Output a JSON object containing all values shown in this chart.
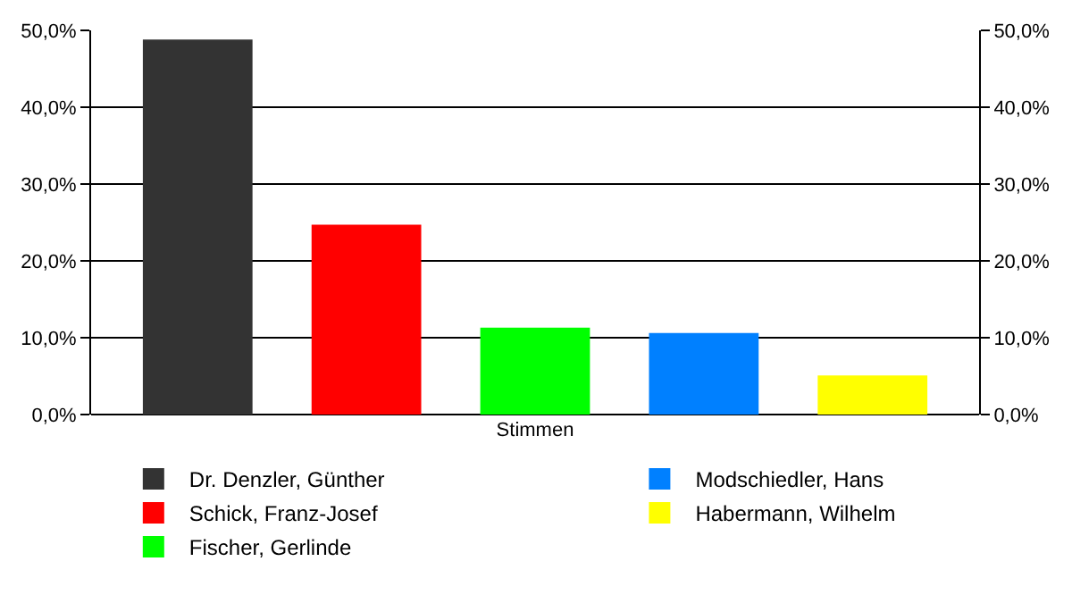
{
  "chart_data": {
    "type": "bar",
    "categories": [
      "Stimmen"
    ],
    "series": [
      {
        "name": "Dr. Denzler, Günther",
        "color": "#333333",
        "values": [
          48.8
        ]
      },
      {
        "name": "Schick, Franz-Josef",
        "color": "#ff0000",
        "values": [
          24.7
        ]
      },
      {
        "name": "Fischer, Gerlinde",
        "color": "#00ff00",
        "values": [
          11.3
        ]
      },
      {
        "name": "Modschiedler, Hans",
        "color": "#0080ff",
        "values": [
          10.6
        ]
      },
      {
        "name": "Habermann, Wilhelm",
        "color": "#ffff00",
        "values": [
          5.1
        ]
      }
    ],
    "ylim": [
      0,
      50
    ],
    "yticks": [
      {
        "value": 0,
        "label": "0,0%"
      },
      {
        "value": 10,
        "label": "10,0%"
      },
      {
        "value": 20,
        "label": "20,0%"
      },
      {
        "value": 30,
        "label": "30,0%"
      },
      {
        "value": 40,
        "label": "40,0%"
      },
      {
        "value": 50,
        "label": "50,0%"
      }
    ],
    "grid": "y",
    "legend": "bottom"
  }
}
